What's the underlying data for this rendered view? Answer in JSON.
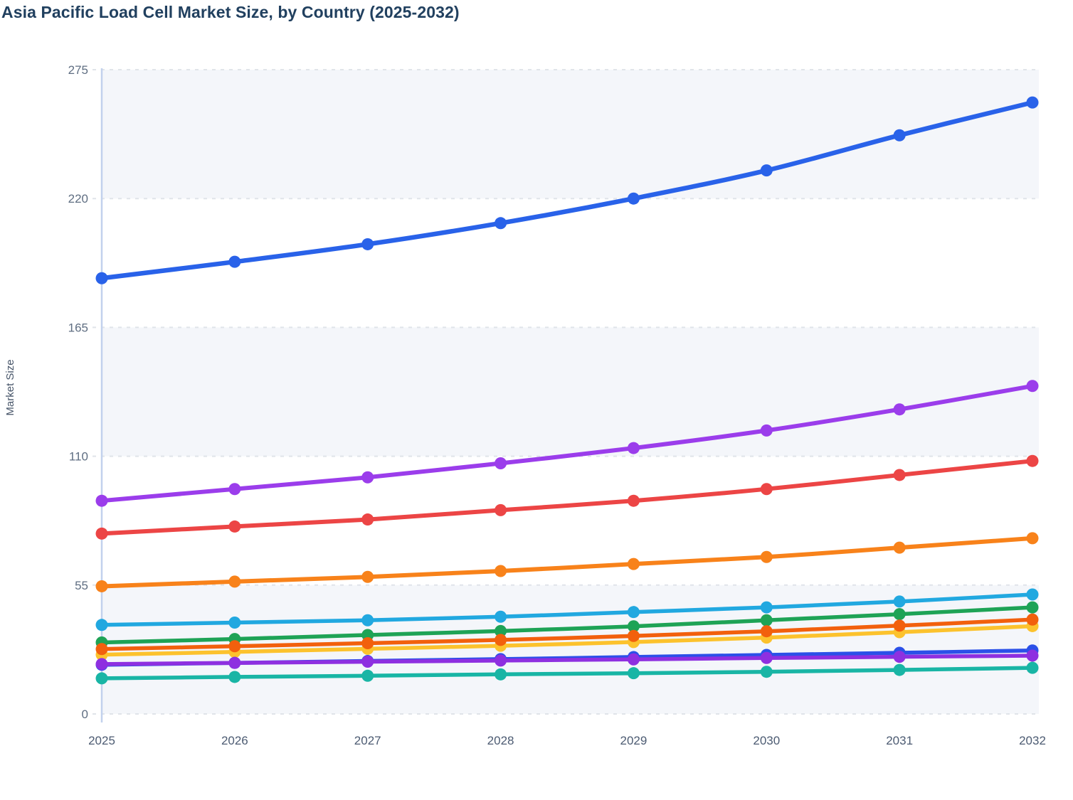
{
  "page": {
    "title": "Asia Pacific Load Cell Market Size, by Country (2025-2032)"
  },
  "chart_data": {
    "type": "line",
    "title": "Asia Pacific Load Cell Market Size, by Country (2025-2032)",
    "xlabel": "",
    "ylabel": "Market Size",
    "x": [
      "2025",
      "2026",
      "2027",
      "2028",
      "2029",
      "2030",
      "2031",
      "2032"
    ],
    "y_ticks": [
      0,
      55,
      110,
      165,
      220,
      275
    ],
    "ylim": [
      0,
      275
    ],
    "grid": "horizontal-dashed",
    "legend_position": "none",
    "background_bands": "alternating-light",
    "series": [
      {
        "name": "series-01-blue",
        "color": "#2962e9",
        "line_width": 6.5,
        "values": [
          186,
          193,
          200.5,
          209.5,
          220,
          232,
          247,
          261
        ]
      },
      {
        "name": "series-02-purple",
        "color": "#9b3deb",
        "line_width": 6,
        "values": [
          91,
          96,
          101,
          107,
          113.5,
          121,
          130,
          140
        ]
      },
      {
        "name": "series-03-red",
        "color": "#ec4545",
        "line_width": 6,
        "values": [
          77,
          80,
          83,
          87,
          91,
          96,
          102,
          108
        ]
      },
      {
        "name": "series-04-orange",
        "color": "#f8821a",
        "line_width": 6,
        "values": [
          54.5,
          56.5,
          58.5,
          61,
          64,
          67,
          71,
          75
        ]
      },
      {
        "name": "series-05-cyan",
        "color": "#21a8e0",
        "line_width": 5.5,
        "values": [
          38,
          39,
          40,
          41.5,
          43.5,
          45.5,
          48,
          51
        ]
      },
      {
        "name": "series-06-green",
        "color": "#1ea356",
        "line_width": 5.5,
        "values": [
          30.5,
          32,
          33.7,
          35.4,
          37.4,
          40,
          42.6,
          45.5
        ]
      },
      {
        "name": "series-08-yellow",
        "color": "#fcc22d",
        "line_width": 5.5,
        "values": [
          25.3,
          26.5,
          27.8,
          29.1,
          30.7,
          32.6,
          34.9,
          37.5
        ]
      },
      {
        "name": "series-07-orange2",
        "color": "#f2600d",
        "line_width": 5.5,
        "values": [
          27.7,
          28.9,
          30.2,
          31.6,
          33.3,
          35.3,
          37.7,
          40.3
        ]
      },
      {
        "name": "series-09-blue2",
        "color": "#2b50e8",
        "line_width": 5.5,
        "values": [
          21.0,
          21.8,
          22.6,
          23.4,
          24.3,
          25.2,
          26.1,
          27.1
        ]
      },
      {
        "name": "series-10-violet",
        "color": "#8e30e0",
        "line_width": 5.5,
        "values": [
          21.3,
          21.8,
          22.3,
          22.8,
          23.3,
          23.9,
          24.4,
          24.9
        ]
      },
      {
        "name": "series-11-teal",
        "color": "#19b5a5",
        "line_width": 5.5,
        "values": [
          15.2,
          15.8,
          16.3,
          16.9,
          17.4,
          18.0,
          18.8,
          19.7
        ]
      }
    ]
  },
  "colors": {
    "title": "#21405f",
    "band_fill": "#f4f6fa",
    "gridline": "#e0e4e9",
    "axis_line": "#c2d1ed",
    "y_tick_label": "#5f6e82",
    "x_tick_label": "#4c5b72",
    "y_axis_title": "#475569"
  }
}
